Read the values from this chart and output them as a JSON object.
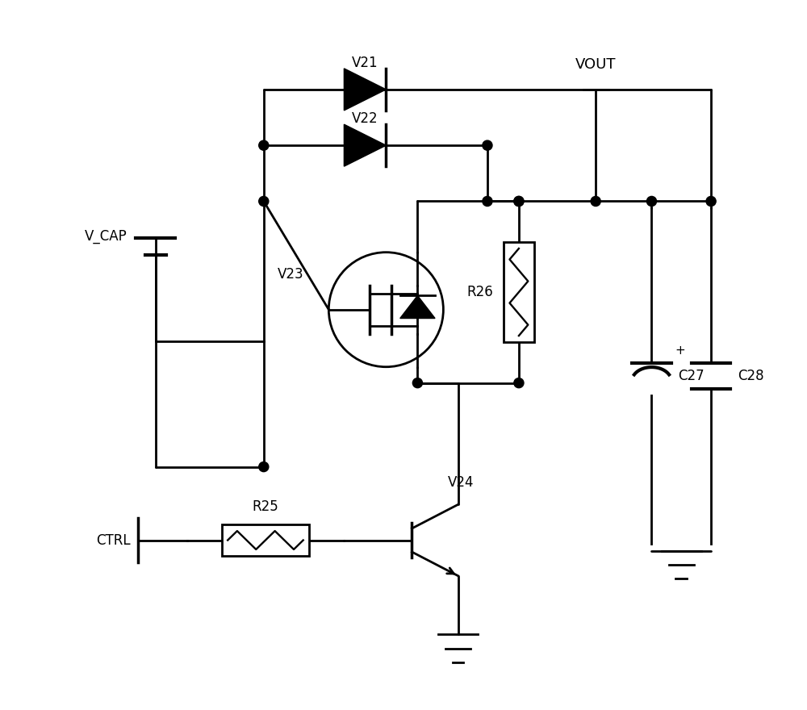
{
  "bg_color": "#ffffff",
  "line_color": "#000000",
  "line_width": 2.0,
  "components": {
    "V21_label": "V21",
    "V22_label": "V22",
    "V23_label": "V23",
    "V24_label": "V24",
    "R25_label": "R25",
    "R26_label": "R26",
    "C27_label": "C27",
    "C28_label": "C28",
    "VCAP_label": "V_CAP",
    "VOUT_label": "VOUT",
    "CTRL_label": "CTRL"
  }
}
